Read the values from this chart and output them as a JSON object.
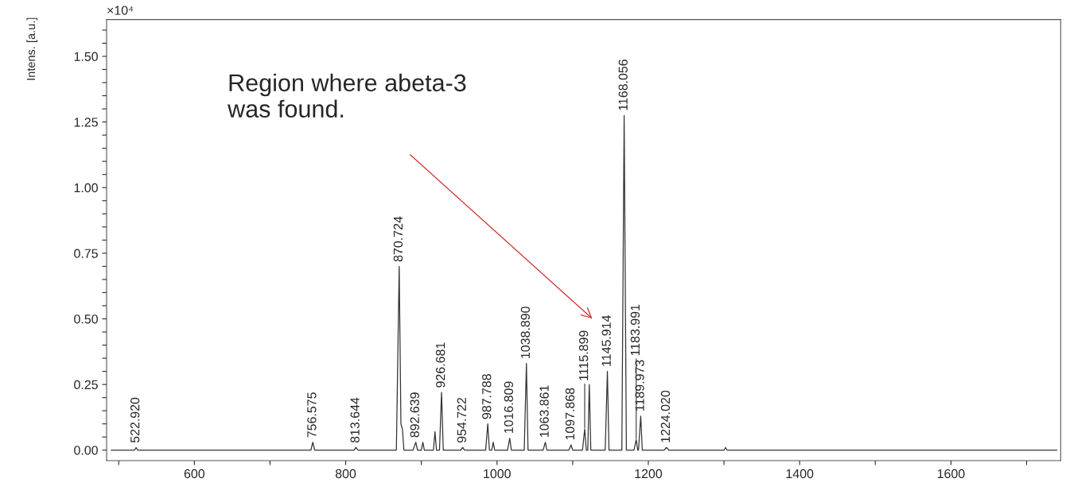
{
  "chart_data": {
    "type": "line",
    "ylabel": "Intens. [a.u.]",
    "annotations": [
      "×10⁴",
      "Region where abeta-3\nwas found.",
      {
        "text": "522.920",
        "x": 522.92,
        "y": 0.01
      },
      {
        "text": "756.575",
        "x": 756.575,
        "y": 0.03
      },
      {
        "text": "813.644",
        "x": 813.644,
        "y": 0.01
      },
      {
        "text": "870.724",
        "x": 870.724,
        "y": 0.7
      },
      {
        "text": "892.639",
        "x": 892.639,
        "y": 0.03
      },
      {
        "text": "926.681",
        "x": 926.681,
        "y": 0.22
      },
      {
        "text": "954.722",
        "x": 954.722,
        "y": 0.01
      },
      {
        "text": "987.788",
        "x": 987.788,
        "y": 0.1
      },
      {
        "text": "1016.809",
        "x": 1016.809,
        "y": 0.045
      },
      {
        "text": "1038.890",
        "x": 1038.89,
        "y": 0.33
      },
      {
        "text": "1063.861",
        "x": 1063.861,
        "y": 0.03
      },
      {
        "text": "1097.868",
        "x": 1097.868,
        "y": 0.02
      },
      {
        "text": "1115.899",
        "x": 1115.899,
        "y": 0.08
      },
      {
        "text": "1145.914",
        "x": 1145.914,
        "y": 0.3
      },
      {
        "text": "1168.056",
        "x": 1168.056,
        "y": 1.275
      },
      {
        "text": "1183.991",
        "x": 1183.991,
        "y": 0.04
      },
      {
        "text": "1189.973",
        "x": 1189.973,
        "y": 0.13
      },
      {
        "text": "1224.020",
        "x": 1224.02,
        "y": 0.01
      }
    ],
    "series": [
      {
        "color": "#333333",
        "x": [
          490,
          521,
          522.92,
          525,
          754,
          756.575,
          759,
          811,
          813.644,
          816,
          867,
          870.724,
          873,
          875,
          877,
          889,
          892.639,
          895,
          900,
          902,
          904,
          916,
          918,
          920,
          924,
          926.681,
          929,
          952,
          954.722,
          957,
          985,
          987.788,
          990,
          993,
          995,
          997,
          1014,
          1016.809,
          1019,
          1036,
          1038.89,
          1041,
          1061,
          1063.861,
          1066,
          1095,
          1097.868,
          1100,
          1113,
          1115.899,
          1118,
          1120,
          1122,
          1124,
          1143,
          1145.914,
          1148,
          1165,
          1168.056,
          1171,
          1181,
          1183.991,
          1186,
          1187,
          1189.973,
          1192,
          1221,
          1224.02,
          1227,
          1300,
          1302,
          1304,
          1740
        ],
        "values": [
          0,
          0,
          0.01,
          0,
          0,
          0.03,
          0,
          0,
          0.01,
          0,
          0,
          0.7,
          0.1,
          0.08,
          0,
          0,
          0.03,
          0,
          0,
          0.03,
          0,
          0,
          0.07,
          0,
          0,
          0.22,
          0,
          0,
          0.01,
          0,
          0,
          0.1,
          0,
          0,
          0.03,
          0,
          0,
          0.045,
          0,
          0,
          0.33,
          0,
          0,
          0.03,
          0,
          0,
          0.02,
          0,
          0,
          0.08,
          0,
          0,
          0.25,
          0,
          0,
          0.3,
          0,
          0,
          1.275,
          0,
          0,
          0.04,
          0,
          0,
          0.13,
          0,
          0,
          0.01,
          0,
          0,
          0.01,
          0,
          0
        ]
      }
    ],
    "xlim": [
      484,
      1745
    ],
    "ylim": [
      -0.04,
      1.64
    ],
    "xticks": [
      {
        "value": 500,
        "label": null
      },
      600,
      {
        "value": 700,
        "label": null
      },
      800,
      {
        "value": 900,
        "label": null
      },
      1000,
      {
        "value": 1100,
        "label": null
      },
      1200,
      {
        "value": 1300,
        "label": null
      },
      1400,
      {
        "value": 1500,
        "label": null
      },
      1600,
      {
        "value": 1700,
        "label": null
      }
    ],
    "yticks": [
      {
        "value": 0,
        "label": "0.00"
      },
      {
        "value": 0.05,
        "label": null
      },
      {
        "value": 0.1,
        "label": null
      },
      {
        "value": 0.15,
        "label": null
      },
      {
        "value": 0.2,
        "label": null
      },
      {
        "value": 0.25,
        "label": "0.25"
      },
      {
        "value": 0.3,
        "label": null
      },
      {
        "value": 0.35,
        "label": null
      },
      {
        "value": 0.4,
        "label": null
      },
      {
        "value": 0.45,
        "label": null
      },
      {
        "value": 0.5,
        "label": "0.50"
      },
      {
        "value": 0.55,
        "label": null
      },
      {
        "value": 0.6,
        "label": null
      },
      {
        "value": 0.65,
        "label": null
      },
      {
        "value": 0.7,
        "label": null
      },
      {
        "value": 0.75,
        "label": "0.75"
      },
      {
        "value": 0.8,
        "label": null
      },
      {
        "value": 0.85,
        "label": null
      },
      {
        "value": 0.9,
        "label": null
      },
      {
        "value": 0.95,
        "label": null
      },
      {
        "value": 1.0,
        "label": "1.00"
      },
      {
        "value": 1.05,
        "label": null
      },
      {
        "value": 1.1,
        "label": null
      },
      {
        "value": 1.15,
        "label": null
      },
      {
        "value": 1.2,
        "label": null
      },
      {
        "value": 1.25,
        "label": "1.25"
      },
      {
        "value": 1.3,
        "label": null
      },
      {
        "value": 1.35,
        "label": null
      },
      {
        "value": 1.4,
        "label": null
      },
      {
        "value": 1.45,
        "label": null
      },
      {
        "value": 1.5,
        "label": "1.50"
      },
      {
        "value": 1.55,
        "label": null
      },
      {
        "value": 1.6,
        "label": null
      }
    ],
    "grid": false,
    "legend": false,
    "marker": "none",
    "line_style": "solid"
  }
}
